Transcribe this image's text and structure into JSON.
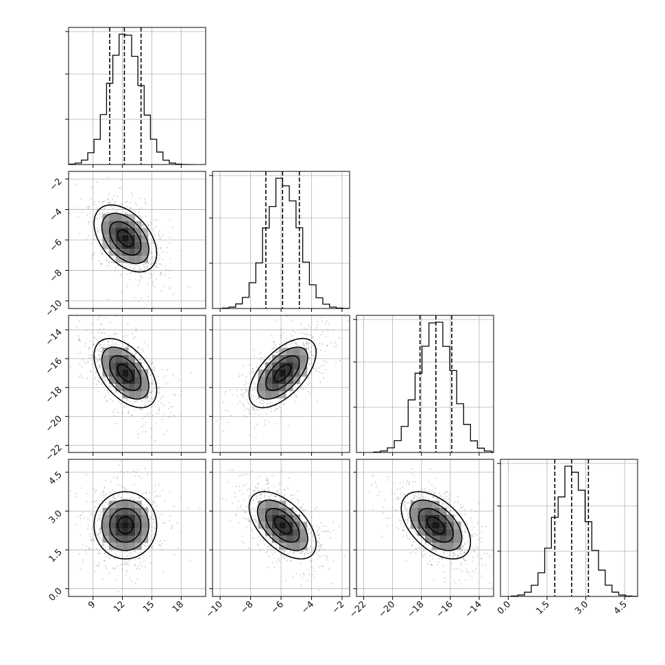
{
  "chart_data": {
    "type": "corner",
    "parameters": [
      {
        "range": [
          6.5,
          20.5
        ],
        "ticks": [
          9,
          12,
          15,
          18
        ],
        "tick_labels": [
          "9",
          "12",
          "15",
          "18"
        ],
        "mean": 12.3,
        "std": 1.6,
        "quantiles": [
          10.7,
          12.2,
          13.9
        ]
      },
      {
        "range": [
          -10.5,
          -1.5
        ],
        "ticks": [
          -10,
          -8,
          -6,
          -4,
          -2
        ],
        "tick_labels": [
          "−10",
          "−8",
          "−6",
          "−4",
          "−2"
        ],
        "mean": -5.9,
        "std": 1.1,
        "quantiles": [
          -7.0,
          -5.9,
          -4.8
        ]
      },
      {
        "range": [
          -22.5,
          -13.0
        ],
        "ticks": [
          -22,
          -20,
          -18,
          -16,
          -14
        ],
        "tick_labels": [
          "−22",
          "−20",
          "−18",
          "−16",
          "−14"
        ],
        "mean": -17.0,
        "std": 1.2,
        "quantiles": [
          -18.1,
          -17.0,
          -15.9
        ]
      },
      {
        "range": [
          -0.3,
          5.0
        ],
        "ticks": [
          0.0,
          1.5,
          3.0,
          4.5
        ],
        "tick_labels": [
          "0.0",
          "1.5",
          "3.0",
          "4.5"
        ],
        "mean": 2.45,
        "std": 0.65,
        "quantiles": [
          1.8,
          2.45,
          3.1
        ]
      }
    ],
    "correlations": [
      [
        0,
        1,
        -0.45
      ],
      [
        0,
        2,
        -0.5
      ],
      [
        1,
        2,
        0.6
      ],
      [
        0,
        3,
        0.0
      ],
      [
        1,
        3,
        -0.55
      ],
      [
        2,
        3,
        -0.5
      ]
    ],
    "quantile_levels": [
      0.16,
      0.5,
      0.84
    ],
    "grid": true
  }
}
